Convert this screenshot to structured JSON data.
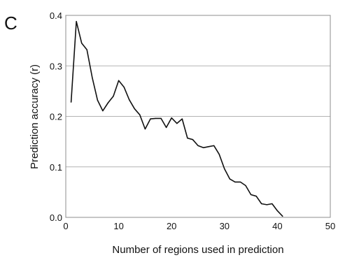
{
  "panel_label": "C",
  "chart_data": {
    "type": "line",
    "title": "",
    "xlabel": "Number of regions used in prediction",
    "ylabel": "Prediction accuracy (r)",
    "xlim": [
      0,
      50
    ],
    "ylim": [
      0,
      0.4
    ],
    "x_ticks": [
      0,
      10,
      20,
      30,
      40,
      50
    ],
    "x_tick_labels": [
      "0",
      "10",
      "20",
      "30",
      "40",
      "50"
    ],
    "y_ticks": [
      0,
      0.1,
      0.2,
      0.3,
      0.4
    ],
    "y_tick_labels": [
      "0.0",
      "0.1",
      "0.2",
      "0.3",
      "0.4"
    ],
    "grid": {
      "horizontal": true,
      "vertical": false
    },
    "legend": "none",
    "line_color": "#111111",
    "grid_color": "#b3b3b3",
    "series": [
      {
        "x": [
          1,
          2,
          3,
          4,
          5,
          6,
          7,
          8,
          9,
          10,
          11,
          12,
          13,
          14,
          15,
          16,
          17,
          18,
          19,
          20,
          21,
          22,
          23,
          24,
          25,
          26,
          27,
          28,
          29,
          30,
          31,
          32,
          33,
          34,
          35,
          36,
          37,
          38,
          39,
          40,
          41
        ],
        "values": [
          0.228,
          0.388,
          0.345,
          0.332,
          0.277,
          0.232,
          0.211,
          0.227,
          0.24,
          0.271,
          0.258,
          0.233,
          0.215,
          0.203,
          0.175,
          0.195,
          0.196,
          0.196,
          0.178,
          0.197,
          0.186,
          0.195,
          0.157,
          0.154,
          0.142,
          0.138,
          0.14,
          0.142,
          0.125,
          0.096,
          0.076,
          0.07,
          0.07,
          0.063,
          0.045,
          0.042,
          0.027,
          0.025,
          0.027,
          0.013,
          0.002
        ]
      }
    ]
  }
}
